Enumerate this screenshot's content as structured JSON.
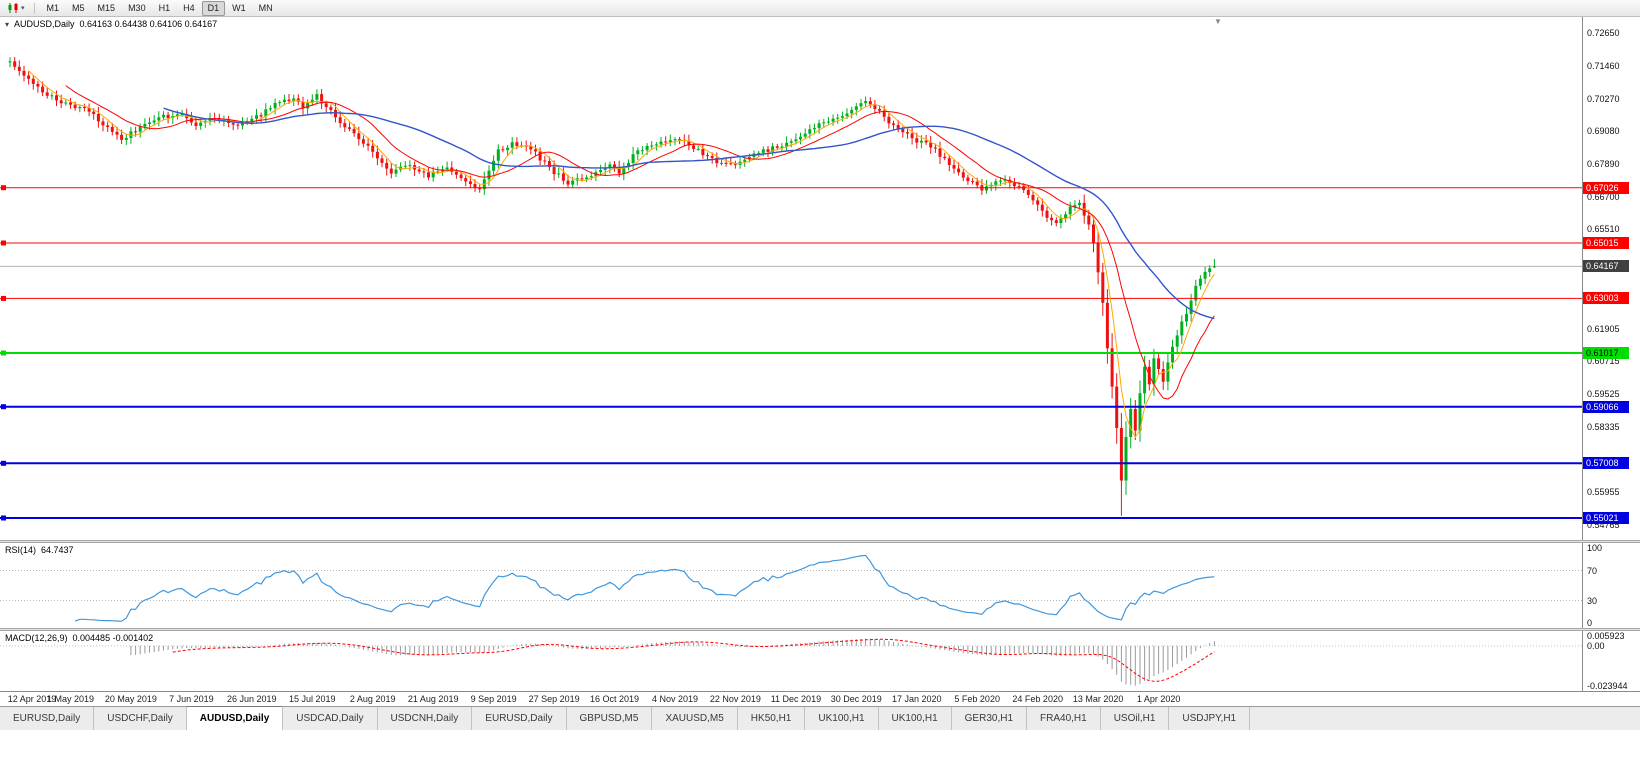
{
  "toolbar": {
    "timeframes": [
      {
        "label": "M1",
        "active": false
      },
      {
        "label": "M5",
        "active": false
      },
      {
        "label": "M15",
        "active": false
      },
      {
        "label": "M30",
        "active": false
      },
      {
        "label": "H1",
        "active": false
      },
      {
        "label": "H4",
        "active": false
      },
      {
        "label": "D1",
        "active": true
      },
      {
        "label": "W1",
        "active": false
      },
      {
        "label": "MN",
        "active": false
      }
    ]
  },
  "chart": {
    "symbol": "AUDUSD,Daily",
    "ohlc_text": "0.64163 0.64438 0.64106 0.64167",
    "open": "0.64163",
    "high": "0.64438",
    "low": "0.64106",
    "close": "0.64167"
  },
  "rsi": {
    "title": "RSI(14)",
    "value": "64.7437",
    "period": 14,
    "levels": [
      100,
      70,
      30,
      0
    ],
    "color": "#3E97DE"
  },
  "macd": {
    "title": "MACD(12,26,9)",
    "value": "0.004485 -0.001402",
    "fast": 12,
    "slow": 26,
    "signal": 9,
    "scale_max": "0.005923",
    "scale_zero": "0.00",
    "scale_min": "-0.023944",
    "hist_color": "#9a9a9a",
    "signal_color": "#FF0000"
  },
  "chart_data": {
    "type": "candlestick",
    "symbol": "AUDUSD",
    "period": "Daily",
    "y_axis": {
      "max": 0.7265,
      "min": 0.54765,
      "labels": [
        "0.72650",
        "0.71460",
        "0.70270",
        "0.69080",
        "0.67890",
        "0.66700",
        "0.65510",
        "0.61905",
        "0.60715",
        "0.59525",
        "0.58335",
        "0.55955",
        "0.54765"
      ]
    },
    "x_labels": [
      [
        0,
        "12 Apr 2019"
      ],
      [
        13,
        "1 May 2019"
      ],
      [
        26,
        "20 May 2019"
      ],
      [
        39,
        "7 Jun 2019"
      ],
      [
        52,
        "26 Jun 2019"
      ],
      [
        65,
        "15 Jul 2019"
      ],
      [
        78,
        "2 Aug 2019"
      ],
      [
        91,
        "21 Aug 2019"
      ],
      [
        104,
        "9 Sep 2019"
      ],
      [
        117,
        "27 Sep 2019"
      ],
      [
        130,
        "16 Oct 2019"
      ],
      [
        143,
        "4 Nov 2019"
      ],
      [
        156,
        "22 Nov 2019"
      ],
      [
        169,
        "11 Dec 2019"
      ],
      [
        182,
        "30 Dec 2019"
      ],
      [
        195,
        "17 Jan 2020"
      ],
      [
        208,
        "5 Feb 2020"
      ],
      [
        221,
        "24 Feb 2020"
      ],
      [
        234,
        "13 Mar 2020"
      ],
      [
        247,
        "1 Apr 2020"
      ]
    ],
    "hlines": [
      {
        "price": 0.67026,
        "label": "0.67026",
        "color": "#FF0000",
        "width": 1,
        "text": "#ffffff"
      },
      {
        "price": 0.65015,
        "label": "0.65015",
        "color": "#FF0000",
        "width": 1,
        "text": "#ffffff"
      },
      {
        "price": 0.63003,
        "label": "0.63003",
        "color": "#FF0000",
        "width": 1,
        "text": "#ffffff"
      },
      {
        "price": 0.61017,
        "label": "0.61017",
        "color": "#00DD00",
        "width": 2,
        "text": "#000000"
      },
      {
        "price": 0.59066,
        "label": "0.59066",
        "color": "#0000E0",
        "width": 2,
        "text": "#ffffff"
      },
      {
        "price": 0.57008,
        "label": "0.57008",
        "color": "#0000E0",
        "width": 2,
        "text": "#ffffff"
      },
      {
        "price": 0.55021,
        "label": "0.55021",
        "color": "#0000E0",
        "width": 2,
        "text": "#ffffff"
      }
    ],
    "current_price": {
      "value": 0.64167,
      "label": "0.64167",
      "line_color": "#b4b4b4",
      "box_color": "#404040"
    },
    "candles": {
      "count": 260,
      "seed": 7,
      "noise": 0.0012,
      "wick_base": 0.0006,
      "wick_rand": 0.0014,
      "up_color": "#00B020",
      "down_color": "#EE1111",
      "final": {
        "open": 0.64163,
        "high": 0.64438,
        "low": 0.64106,
        "close": 0.64167
      },
      "spike_low": {
        "index": 239,
        "low": 0.551
      },
      "waypoints": [
        [
          0,
          0.716
        ],
        [
          3,
          0.711
        ],
        [
          8,
          0.704
        ],
        [
          12,
          0.7008
        ],
        [
          16,
          0.6985
        ],
        [
          20,
          0.6938
        ],
        [
          24,
          0.688
        ],
        [
          28,
          0.692
        ],
        [
          33,
          0.6965
        ],
        [
          37,
          0.6975
        ],
        [
          40,
          0.693
        ],
        [
          44,
          0.6962
        ],
        [
          48,
          0.693
        ],
        [
          52,
          0.695
        ],
        [
          57,
          0.7005
        ],
        [
          61,
          0.7022
        ],
        [
          63,
          0.6995
        ],
        [
          66,
          0.7035
        ],
        [
          70,
          0.6958
        ],
        [
          74,
          0.69
        ],
        [
          78,
          0.6832
        ],
        [
          82,
          0.6762
        ],
        [
          86,
          0.6788
        ],
        [
          90,
          0.6745
        ],
        [
          94,
          0.6775
        ],
        [
          98,
          0.6722
        ],
        [
          101,
          0.67
        ],
        [
          105,
          0.6838
        ],
        [
          108,
          0.6868
        ],
        [
          112,
          0.6842
        ],
        [
          116,
          0.6772
        ],
        [
          120,
          0.6715
        ],
        [
          125,
          0.675
        ],
        [
          129,
          0.6785
        ],
        [
          131,
          0.6758
        ],
        [
          135,
          0.6838
        ],
        [
          139,
          0.6862
        ],
        [
          143,
          0.6885
        ],
        [
          147,
          0.6848
        ],
        [
          152,
          0.6795
        ],
        [
          156,
          0.6788
        ],
        [
          161,
          0.6832
        ],
        [
          165,
          0.6852
        ],
        [
          169,
          0.688
        ],
        [
          174,
          0.6932
        ],
        [
          178,
          0.6958
        ],
        [
          182,
          0.7
        ],
        [
          184,
          0.7018
        ],
        [
          188,
          0.6958
        ],
        [
          192,
          0.69
        ],
        [
          195,
          0.6878
        ],
        [
          199,
          0.6838
        ],
        [
          203,
          0.6768
        ],
        [
          207,
          0.6718
        ],
        [
          209,
          0.67
        ],
        [
          213,
          0.6732
        ],
        [
          217,
          0.6708
        ],
        [
          220,
          0.6658
        ],
        [
          223,
          0.6598
        ],
        [
          225,
          0.657
        ],
        [
          228,
          0.6638
        ],
        [
          230,
          0.665
        ],
        [
          232,
          0.6575
        ],
        [
          233,
          0.65
        ],
        [
          234,
          0.6395
        ],
        [
          235,
          0.629
        ],
        [
          236,
          0.612
        ],
        [
          237,
          0.598
        ],
        [
          238,
          0.583
        ],
        [
          239,
          0.564
        ],
        [
          240,
          0.5795
        ],
        [
          241,
          0.59
        ],
        [
          242,
          0.5815
        ],
        [
          243,
          0.595
        ],
        [
          244,
          0.6045
        ],
        [
          245,
          0.5985
        ],
        [
          246,
          0.609
        ],
        [
          247,
          0.604
        ],
        [
          248,
          0.6005
        ],
        [
          249,
          0.6068
        ],
        [
          250,
          0.6125
        ],
        [
          251,
          0.6175
        ],
        [
          253,
          0.624
        ],
        [
          255,
          0.634
        ],
        [
          257,
          0.64
        ],
        [
          259,
          0.6417
        ]
      ]
    },
    "overlays": [
      {
        "type": "sma",
        "period": 5,
        "color": "#FFA800",
        "width": 1
      },
      {
        "type": "sma",
        "period": 13,
        "color": "#FF0000",
        "width": 1
      },
      {
        "type": "sma",
        "period": 34,
        "color": "#3355CC",
        "width": 1.4
      }
    ]
  },
  "tabs": {
    "active_index": 2,
    "items": [
      "EURUSD,Daily",
      "USDCHF,Daily",
      "AUDUSD,Daily",
      "USDCAD,Daily",
      "USDCNH,Daily",
      "EURUSD,Daily",
      "GBPUSD,M5",
      "XAUUSD,M5",
      "HK50,H1",
      "UK100,H1",
      "UK100,H1",
      "GER30,H1",
      "FRA40,H1",
      "USOil,H1",
      "USDJPY,H1"
    ]
  }
}
